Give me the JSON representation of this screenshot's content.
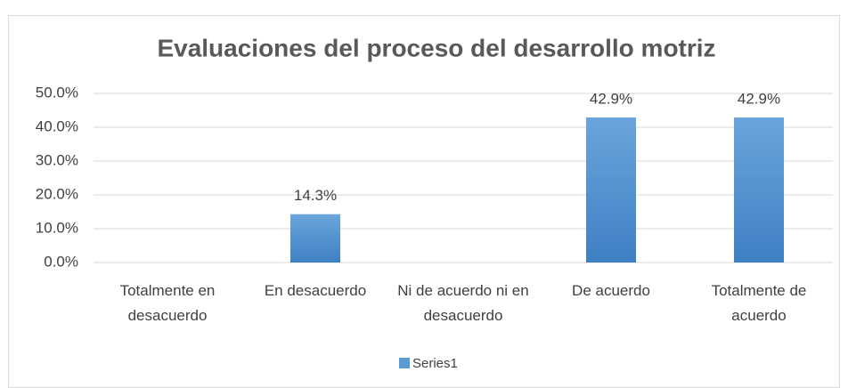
{
  "chart_data": {
    "type": "bar",
    "title": "Evaluaciones del proceso del desarrollo motriz",
    "categories": [
      "Totalmente en desacuerdo",
      "En desacuerdo",
      "Ni de acuerdo ni en desacuerdo",
      "De acuerdo",
      "Totalmente de acuerdo"
    ],
    "series": [
      {
        "name": "Series1",
        "color": "#5b9bd5",
        "values": [
          0,
          14.3,
          0,
          42.9,
          42.9
        ],
        "value_labels": [
          null,
          "14.3%",
          null,
          "42.9%",
          "42.9%"
        ]
      }
    ],
    "ylim": [
      0,
      50
    ],
    "yticks": [
      {
        "value": 0,
        "label": "0.0%"
      },
      {
        "value": 10,
        "label": "10.0%"
      },
      {
        "value": 20,
        "label": "20.0%"
      },
      {
        "value": 30,
        "label": "30.0%"
      },
      {
        "value": 40,
        "label": "40.0%"
      },
      {
        "value": 50,
        "label": "50.0%"
      }
    ],
    "grid": true,
    "legend": "bottom"
  }
}
